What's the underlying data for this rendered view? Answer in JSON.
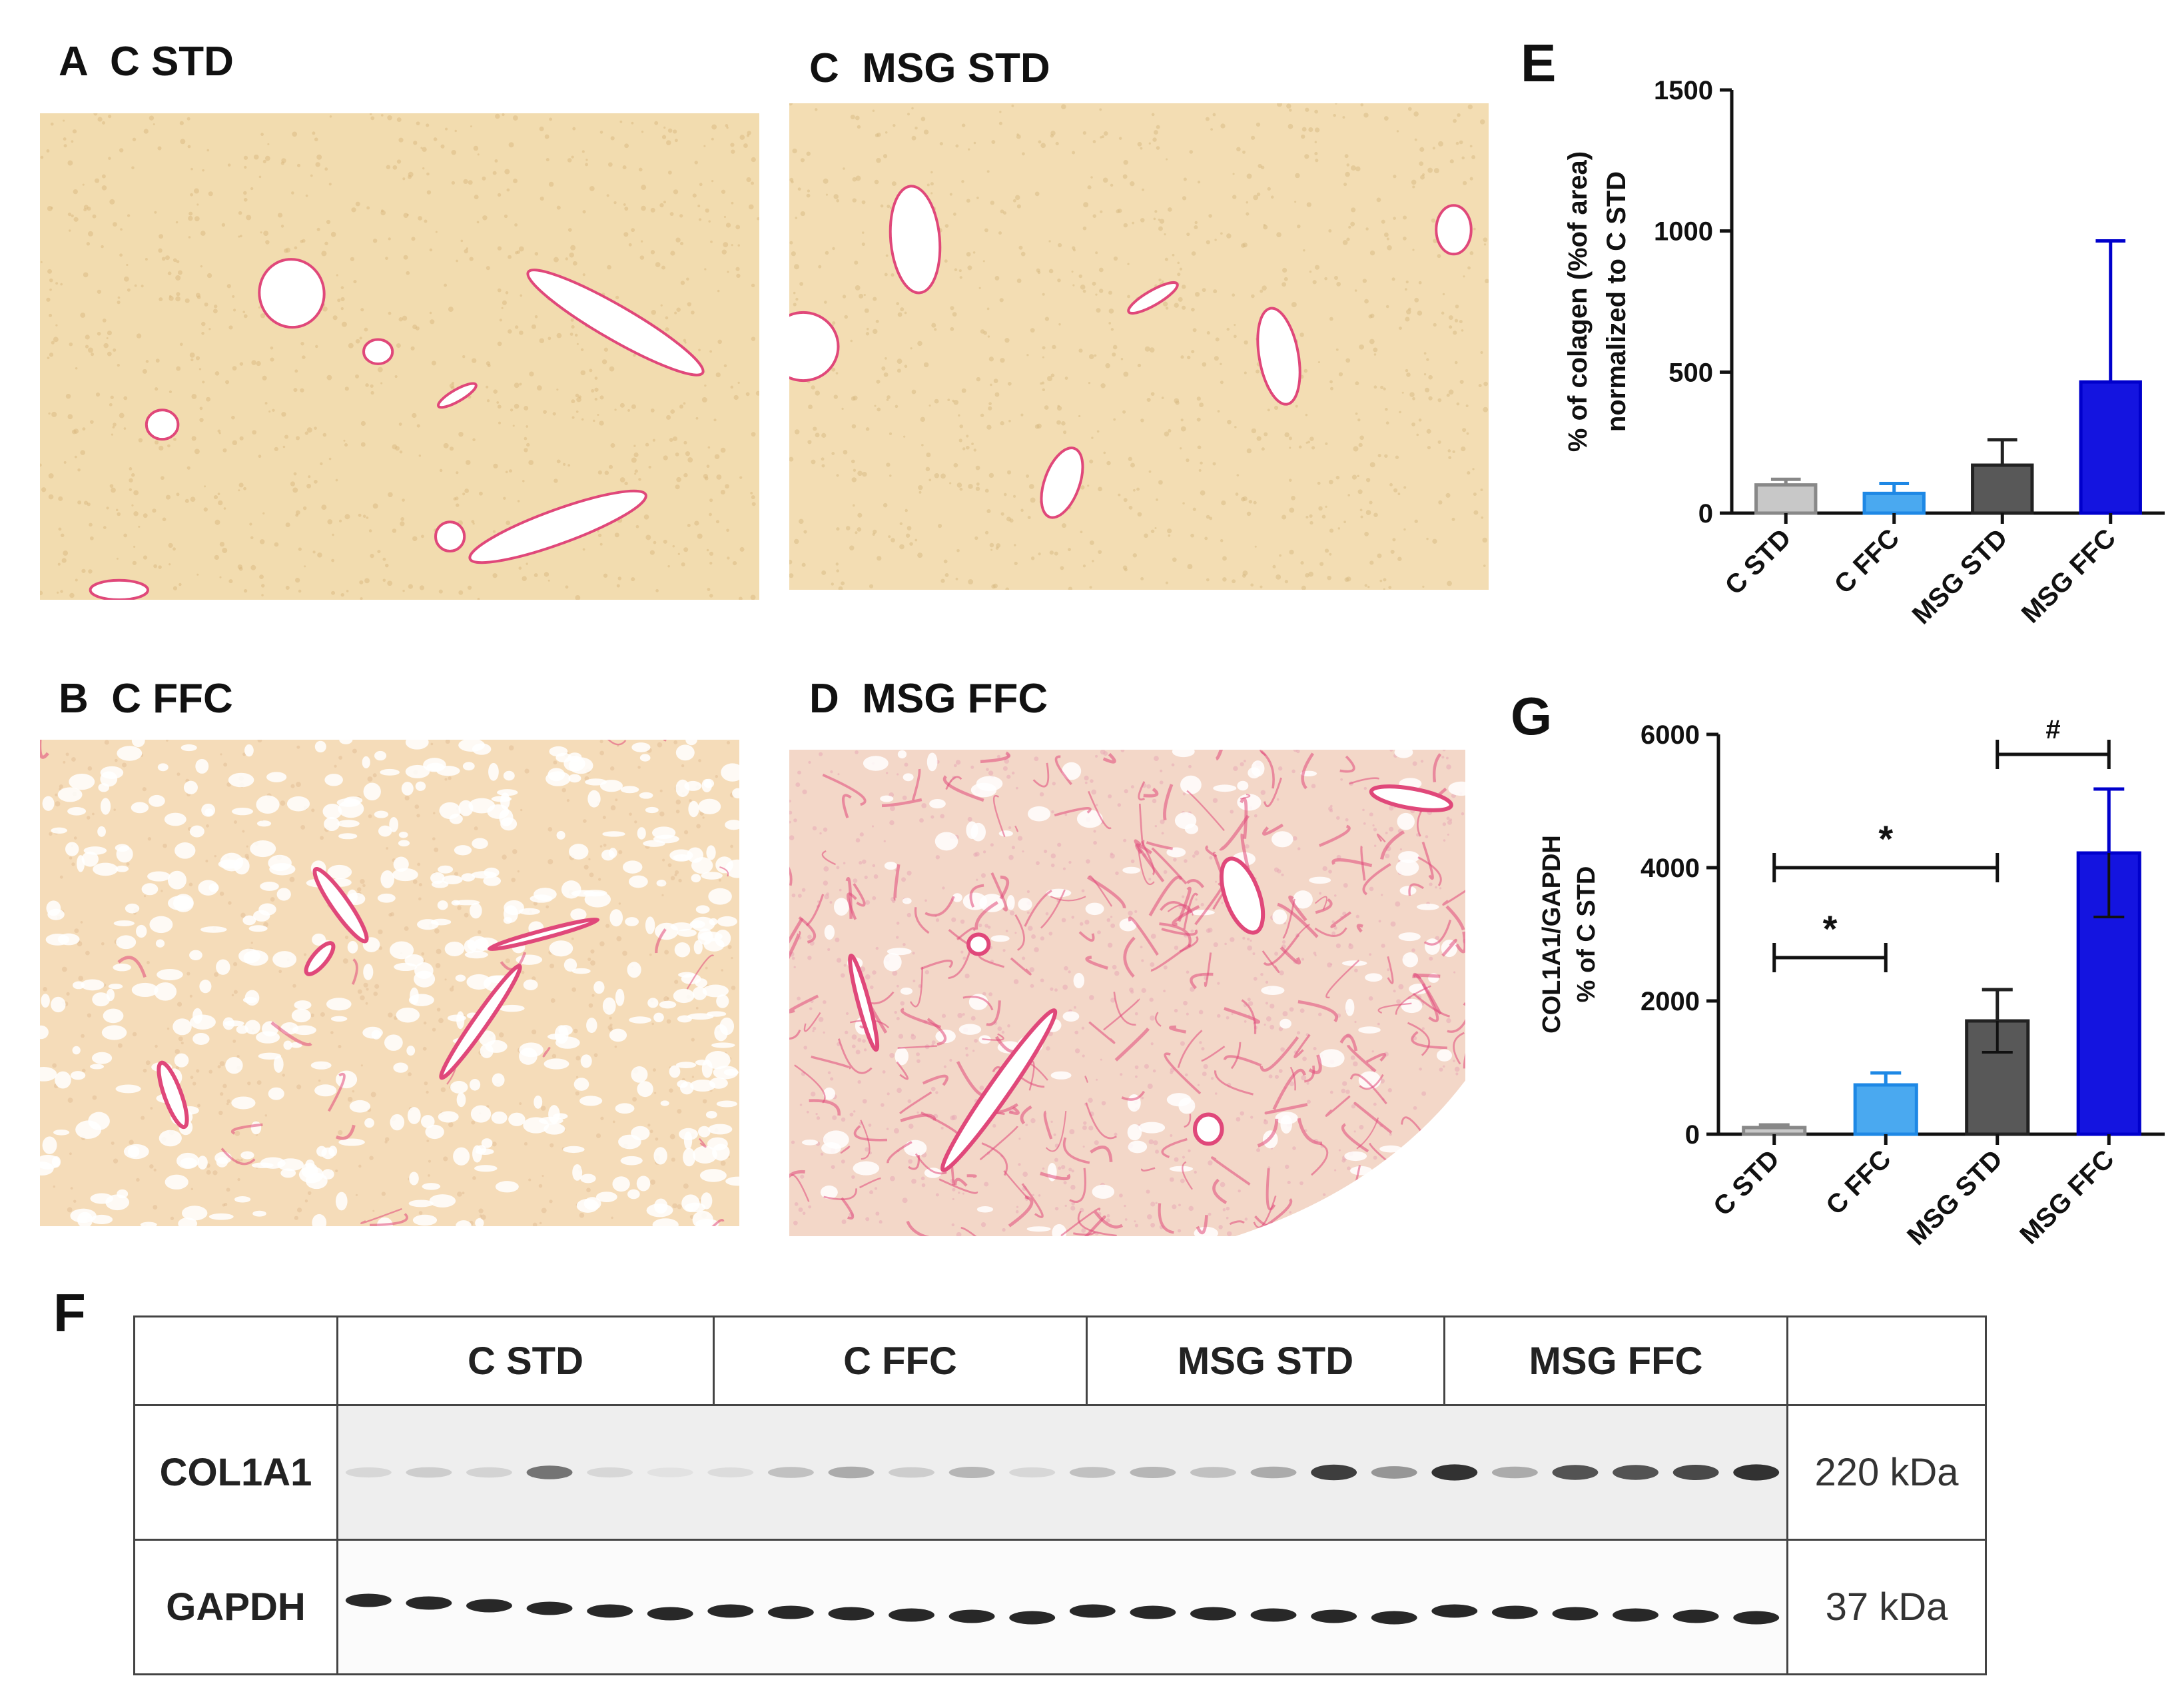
{
  "panels": {
    "a": {
      "letter": "A",
      "title": "C STD"
    },
    "b": {
      "letter": "B",
      "title": "C FFC"
    },
    "c": {
      "letter": "C",
      "title": "MSG STD"
    },
    "d": {
      "letter": "D",
      "title": "MSG FFC"
    },
    "e": {
      "letter": "E"
    },
    "f": {
      "letter": "F"
    },
    "g": {
      "letter": "G"
    }
  },
  "colors": {
    "tissue_bg": "#f3dcb0",
    "collagen": "#e0487a",
    "bar_c_std": "#c8c8c8",
    "bar_c_ffc": "#4aa9f0",
    "bar_msg_std": "#585858",
    "bar_msg_ffc": "#1414e0"
  },
  "chart_data": [
    {
      "id": "E",
      "type": "bar",
      "categories": [
        "C STD",
        "C FFC",
        "MSG STD",
        "MSG FFC"
      ],
      "values": [
        100,
        70,
        170,
        465
      ],
      "errors": [
        20,
        35,
        90,
        500
      ],
      "ylabel": "% of colagen (%of area) normalized to C STD",
      "ylim": [
        0,
        1500
      ],
      "yticks": [
        0,
        500,
        1000,
        1500
      ],
      "annotations": []
    },
    {
      "id": "G",
      "type": "bar",
      "categories": [
        "C STD",
        "C FFC",
        "MSG STD",
        "MSG FFC"
      ],
      "values": [
        100,
        740,
        1700,
        4220
      ],
      "errors": [
        40,
        180,
        470,
        960
      ],
      "ylabel": "COL1A1/GAPDH % of C STD",
      "ylim": [
        0,
        6000
      ],
      "yticks": [
        0,
        2000,
        4000,
        6000
      ],
      "annotations": [
        {
          "from": "C STD",
          "to": "C FFC",
          "label": "*",
          "level": 2650
        },
        {
          "from": "C STD",
          "to": "MSG STD",
          "label": "*",
          "level": 4000
        },
        {
          "from": "MSG STD",
          "to": "MSG FFC",
          "label": "#",
          "level": 5700
        }
      ]
    }
  ],
  "blot": {
    "groups": [
      "C STD",
      "C FFC",
      "MSG STD",
      "MSG FFC"
    ],
    "rows": [
      {
        "label": "COL1A1",
        "kda": "220 kDa"
      },
      {
        "label": "GAPDH",
        "kda": "37 kDa"
      }
    ]
  }
}
